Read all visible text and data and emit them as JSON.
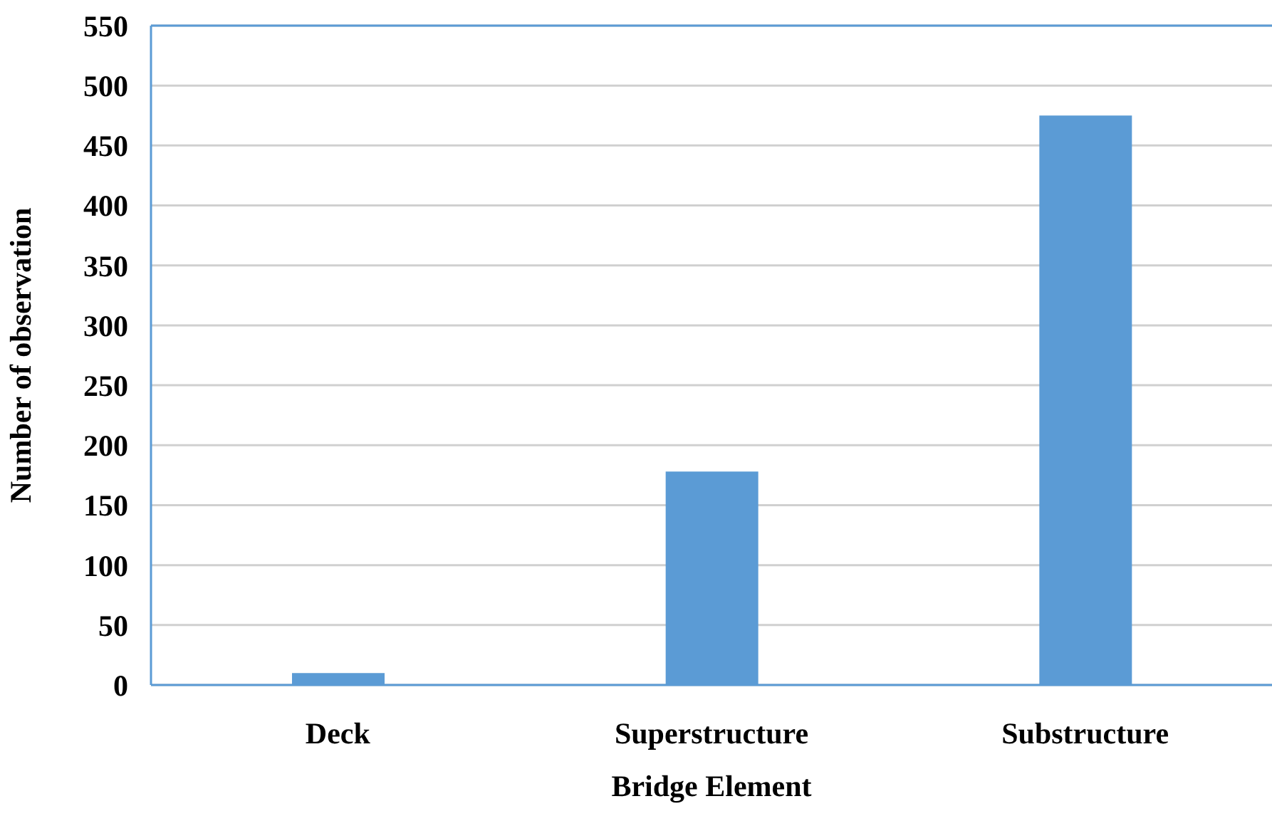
{
  "chart_data": {
    "type": "bar",
    "xlabel": "Bridge Element",
    "ylabel": "Number of observation",
    "categories": [
      "Deck",
      "Superstructure",
      "Substructure"
    ],
    "values": [
      10,
      178,
      475
    ],
    "color": "#5b9bd5",
    "ylim": [
      0,
      550
    ],
    "yticks": [
      0,
      50,
      100,
      150,
      200,
      250,
      300,
      350,
      400,
      450,
      500,
      550
    ],
    "grid": "y",
    "legend": false
  }
}
